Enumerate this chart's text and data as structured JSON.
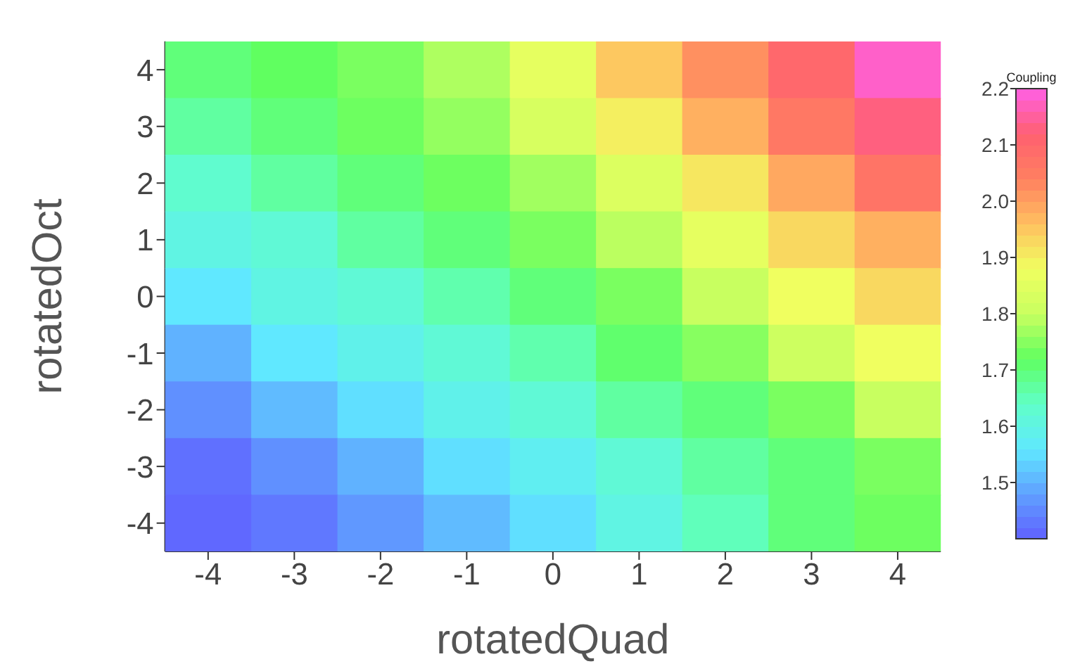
{
  "chart_data": {
    "type": "heatmap",
    "xlabel": "rotatedQuad",
    "ylabel": "rotatedOct",
    "clabel": "Coupling",
    "categories": [
      "-4",
      "-3",
      "-2",
      "-1",
      "0",
      "1",
      "2",
      "3",
      "4"
    ],
    "y_categories": [
      "4",
      "3",
      "2",
      "1",
      "0",
      "-1",
      "-2",
      "-3",
      "-4"
    ],
    "cells": [
      [
        1.7,
        1.72,
        1.74,
        1.78,
        1.86,
        1.95,
        2.02,
        2.1,
        2.18
      ],
      [
        1.67,
        1.7,
        1.73,
        1.76,
        1.83,
        1.9,
        1.98,
        2.06,
        2.13
      ],
      [
        1.63,
        1.67,
        1.7,
        1.73,
        1.77,
        1.84,
        1.91,
        1.99,
        2.07
      ],
      [
        1.6,
        1.62,
        1.67,
        1.7,
        1.74,
        1.79,
        1.86,
        1.93,
        1.98
      ],
      [
        1.56,
        1.6,
        1.62,
        1.66,
        1.7,
        1.74,
        1.8,
        1.88,
        1.93
      ],
      [
        1.5,
        1.56,
        1.59,
        1.62,
        1.66,
        1.71,
        1.75,
        1.81,
        1.88
      ],
      [
        1.46,
        1.51,
        1.55,
        1.59,
        1.62,
        1.67,
        1.7,
        1.74,
        1.8
      ],
      [
        1.42,
        1.46,
        1.5,
        1.55,
        1.58,
        1.62,
        1.67,
        1.7,
        1.74
      ],
      [
        1.41,
        1.43,
        1.47,
        1.51,
        1.55,
        1.6,
        1.65,
        1.7,
        1.73
      ]
    ],
    "clim": [
      1.4,
      2.2
    ],
    "cticks": [
      1.5,
      1.6,
      1.7,
      1.8,
      1.9,
      {
        "value": 2,
        "label": "2.0"
      },
      2.1,
      2.2
    ]
  }
}
